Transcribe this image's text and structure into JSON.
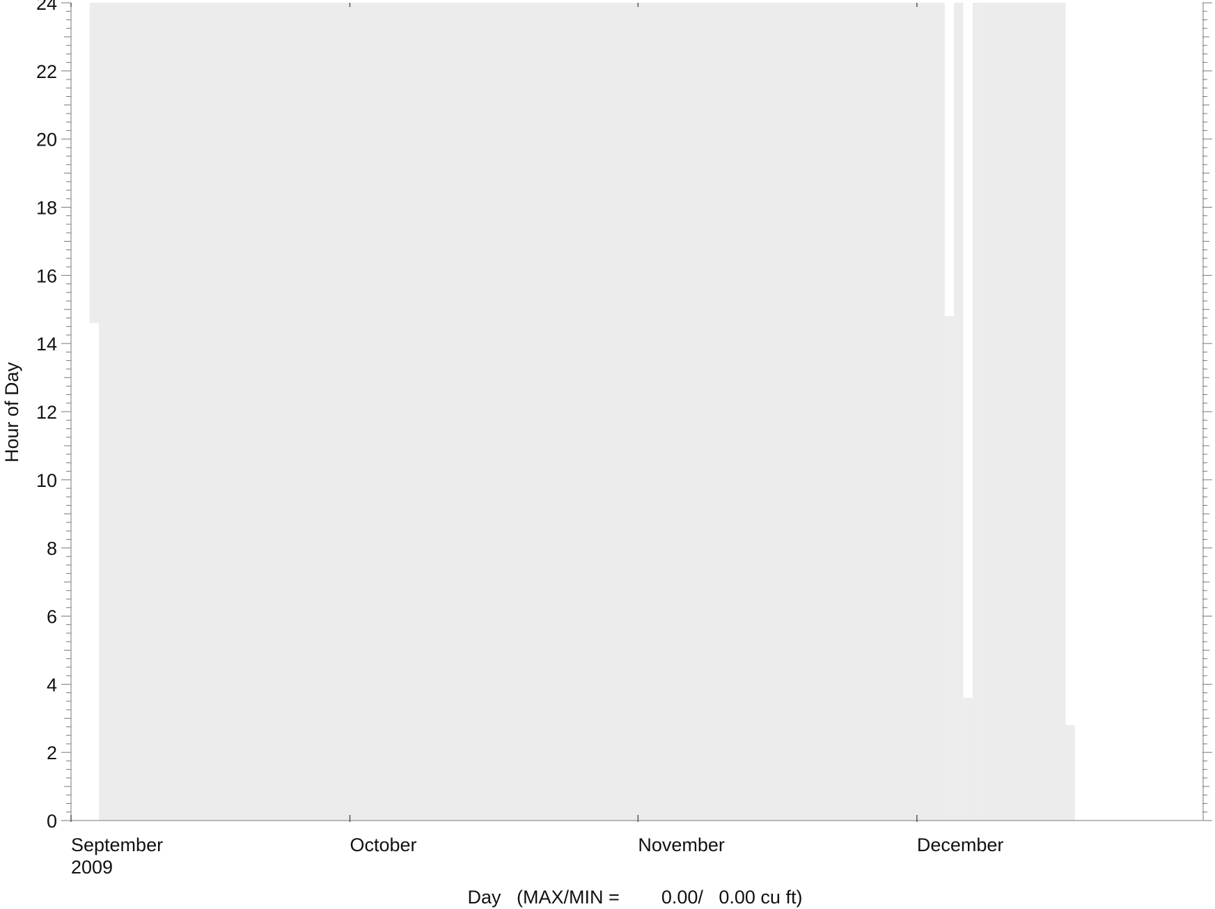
{
  "chart_data": {
    "type": "heatmap",
    "title": "",
    "xlabel": "Day   (MAX/MIN =        0.00/   0.00 cu ft)",
    "ylabel": "Hour of Day",
    "x_axis": {
      "range": [
        "2009-09-01",
        "2009-12-31"
      ],
      "major_tick_labels": [
        {
          "date": "2009-09-01",
          "label": "September",
          "sublabel": "2009"
        },
        {
          "date": "2009-10-01",
          "label": "October",
          "sublabel": ""
        },
        {
          "date": "2009-11-01",
          "label": "November",
          "sublabel": ""
        },
        {
          "date": "2009-12-01",
          "label": "December",
          "sublabel": ""
        }
      ]
    },
    "y_axis": {
      "range": [
        0,
        24
      ],
      "tick_values": [
        0,
        2,
        4,
        6,
        8,
        10,
        12,
        14,
        16,
        18,
        20,
        22,
        24
      ],
      "minor_tick_step": 0.25
    },
    "fill_color": "#ececec",
    "value_max": 0.0,
    "value_min": 0.0,
    "unit": "cu ft",
    "data_coverage": [
      {
        "start": "2009-09-03T14:36",
        "end": "2009-12-04T14:48"
      },
      {
        "start": "2009-12-05T00:00",
        "end": "2009-12-06T03:36"
      },
      {
        "start": "2009-12-07T00:00",
        "end": "2009-12-17T02:48"
      }
    ],
    "grid": false,
    "legend": "none"
  }
}
